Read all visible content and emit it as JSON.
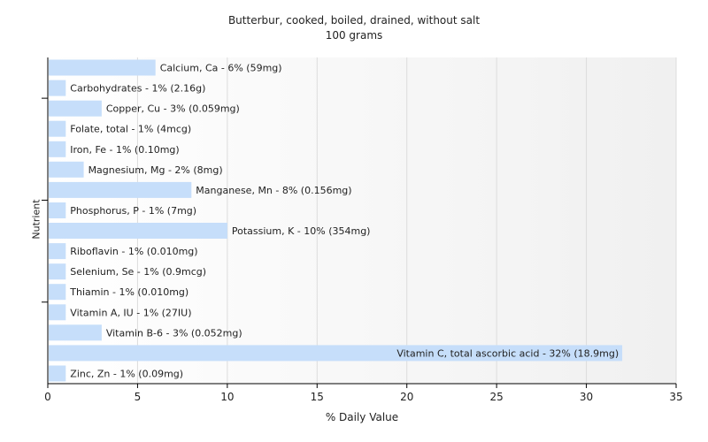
{
  "chart_data": {
    "type": "bar",
    "orientation": "horizontal",
    "title": "Butterbur, cooked, boiled, drained, without salt",
    "subtitle": "100 grams",
    "xlabel": "% Daily Value",
    "ylabel": "Nutrient",
    "xlim": [
      0,
      35
    ],
    "xticks": [
      0,
      5,
      10,
      15,
      20,
      25,
      30,
      35
    ],
    "grid": true,
    "bar_color": "#c6defa",
    "categories": [
      "Calcium, Ca",
      "Carbohydrates",
      "Copper, Cu",
      "Folate, total",
      "Iron, Fe",
      "Magnesium, Mg",
      "Manganese, Mn",
      "Phosphorus, P",
      "Potassium, K",
      "Riboflavin",
      "Selenium, Se",
      "Thiamin",
      "Vitamin A, IU",
      "Vitamin B-6",
      "Vitamin C, total ascorbic acid",
      "Zinc, Zn"
    ],
    "values": [
      6,
      1,
      3,
      1,
      1,
      2,
      8,
      1,
      10,
      1,
      1,
      1,
      1,
      3,
      32,
      1
    ],
    "labels": [
      "Calcium, Ca - 6% (59mg)",
      "Carbohydrates - 1% (2.16g)",
      "Copper, Cu - 3% (0.059mg)",
      "Folate, total - 1% (4mcg)",
      "Iron, Fe - 1% (0.10mg)",
      "Magnesium, Mg - 2% (8mg)",
      "Manganese, Mn - 8% (0.156mg)",
      "Phosphorus, P - 1% (7mg)",
      "Potassium, K - 10% (354mg)",
      "Riboflavin - 1% (0.010mg)",
      "Selenium, Se - 1% (0.9mcg)",
      "Thiamin - 1% (0.010mg)",
      "Vitamin A, IU - 1% (27IU)",
      "Vitamin B-6 - 3% (0.052mg)",
      "Vitamin C, total ascorbic acid - 32% (18.9mg)",
      "Zinc, Zn - 1% (0.09mg)"
    ]
  }
}
